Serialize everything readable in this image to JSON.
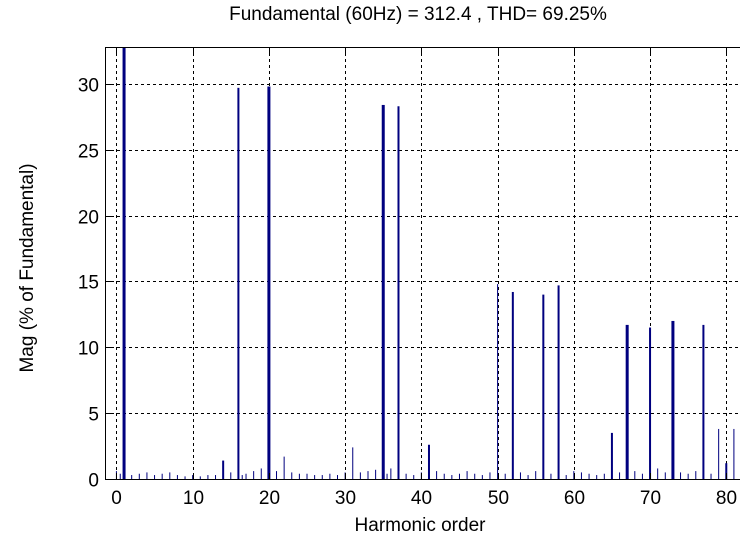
{
  "chart_data": {
    "type": "bar",
    "title": "Fundamental (60Hz) = 312.4 , THD= 69.25%",
    "xlabel": "Harmonic order",
    "ylabel": "Mag (% of Fundamental)",
    "xlim": [
      -1.5,
      81.8
    ],
    "ylim": [
      0,
      32.8
    ],
    "xticks": [
      0,
      10,
      20,
      30,
      40,
      50,
      60,
      70,
      80
    ],
    "yticks": [
      0,
      5,
      10,
      15,
      20,
      25,
      30
    ],
    "grid": true,
    "bar_color": "#00007f",
    "x": [
      0,
      0.5,
      1,
      2,
      3,
      4,
      5,
      6,
      7,
      8,
      9,
      10,
      11,
      12,
      13,
      14,
      15,
      16,
      16.5,
      17,
      18,
      19,
      20,
      21,
      22,
      23,
      24,
      25,
      26,
      27,
      28,
      29,
      30,
      31,
      32,
      33,
      34,
      35,
      35.5,
      36,
      37,
      38,
      39,
      40,
      41,
      42,
      43,
      44,
      45,
      46,
      47,
      48,
      49,
      50,
      51,
      52,
      53,
      54,
      55,
      56,
      57,
      58,
      59,
      60,
      61,
      62,
      63,
      64,
      65,
      66,
      67,
      68,
      69,
      70,
      71,
      72,
      73,
      74,
      75,
      76,
      77,
      78,
      79,
      80,
      81
    ],
    "values": [
      0.6,
      0.4,
      32.8,
      0.3,
      0.4,
      0.5,
      0.3,
      0.4,
      0.5,
      0.3,
      0.2,
      0.3,
      0.2,
      0.3,
      0.3,
      1.4,
      0.5,
      29.7,
      0.3,
      0.4,
      0.6,
      0.8,
      29.8,
      0.6,
      1.7,
      0.5,
      0.4,
      0.4,
      0.3,
      0.3,
      0.4,
      0.3,
      0.5,
      2.4,
      0.5,
      0.6,
      0.7,
      28.4,
      0.4,
      0.8,
      28.3,
      0.4,
      0.3,
      0.5,
      2.6,
      0.6,
      0.4,
      0.3,
      0.4,
      0.6,
      0.4,
      0.3,
      0.5,
      14.8,
      0.4,
      14.2,
      0.5,
      0.3,
      0.6,
      14.0,
      0.4,
      14.7,
      0.3,
      0.6,
      0.5,
      0.4,
      0.3,
      0.4,
      3.5,
      0.5,
      11.7,
      0.6,
      0.4,
      11.5,
      0.8,
      0.5,
      12.0,
      0.5,
      0.4,
      0.6,
      11.7,
      0.4,
      3.8,
      1.2,
      3.8
    ],
    "widths": [
      1,
      1,
      3,
      1,
      1,
      1,
      1,
      1,
      1,
      1,
      1,
      1,
      1,
      1,
      1,
      2,
      1,
      2,
      1,
      1,
      1,
      1,
      3,
      1,
      1,
      1,
      1,
      1,
      1,
      1,
      1,
      1,
      1,
      1,
      1,
      1,
      1,
      3,
      1,
      1,
      2,
      1,
      1,
      1,
      2,
      1,
      1,
      1,
      1,
      1,
      1,
      1,
      1,
      1,
      1,
      2,
      1,
      1,
      1,
      2,
      1,
      2,
      1,
      1,
      1,
      1,
      1,
      1,
      2,
      1,
      3,
      1,
      1,
      2,
      1,
      1,
      3,
      1,
      1,
      1,
      2,
      1,
      1,
      2,
      1
    ]
  }
}
